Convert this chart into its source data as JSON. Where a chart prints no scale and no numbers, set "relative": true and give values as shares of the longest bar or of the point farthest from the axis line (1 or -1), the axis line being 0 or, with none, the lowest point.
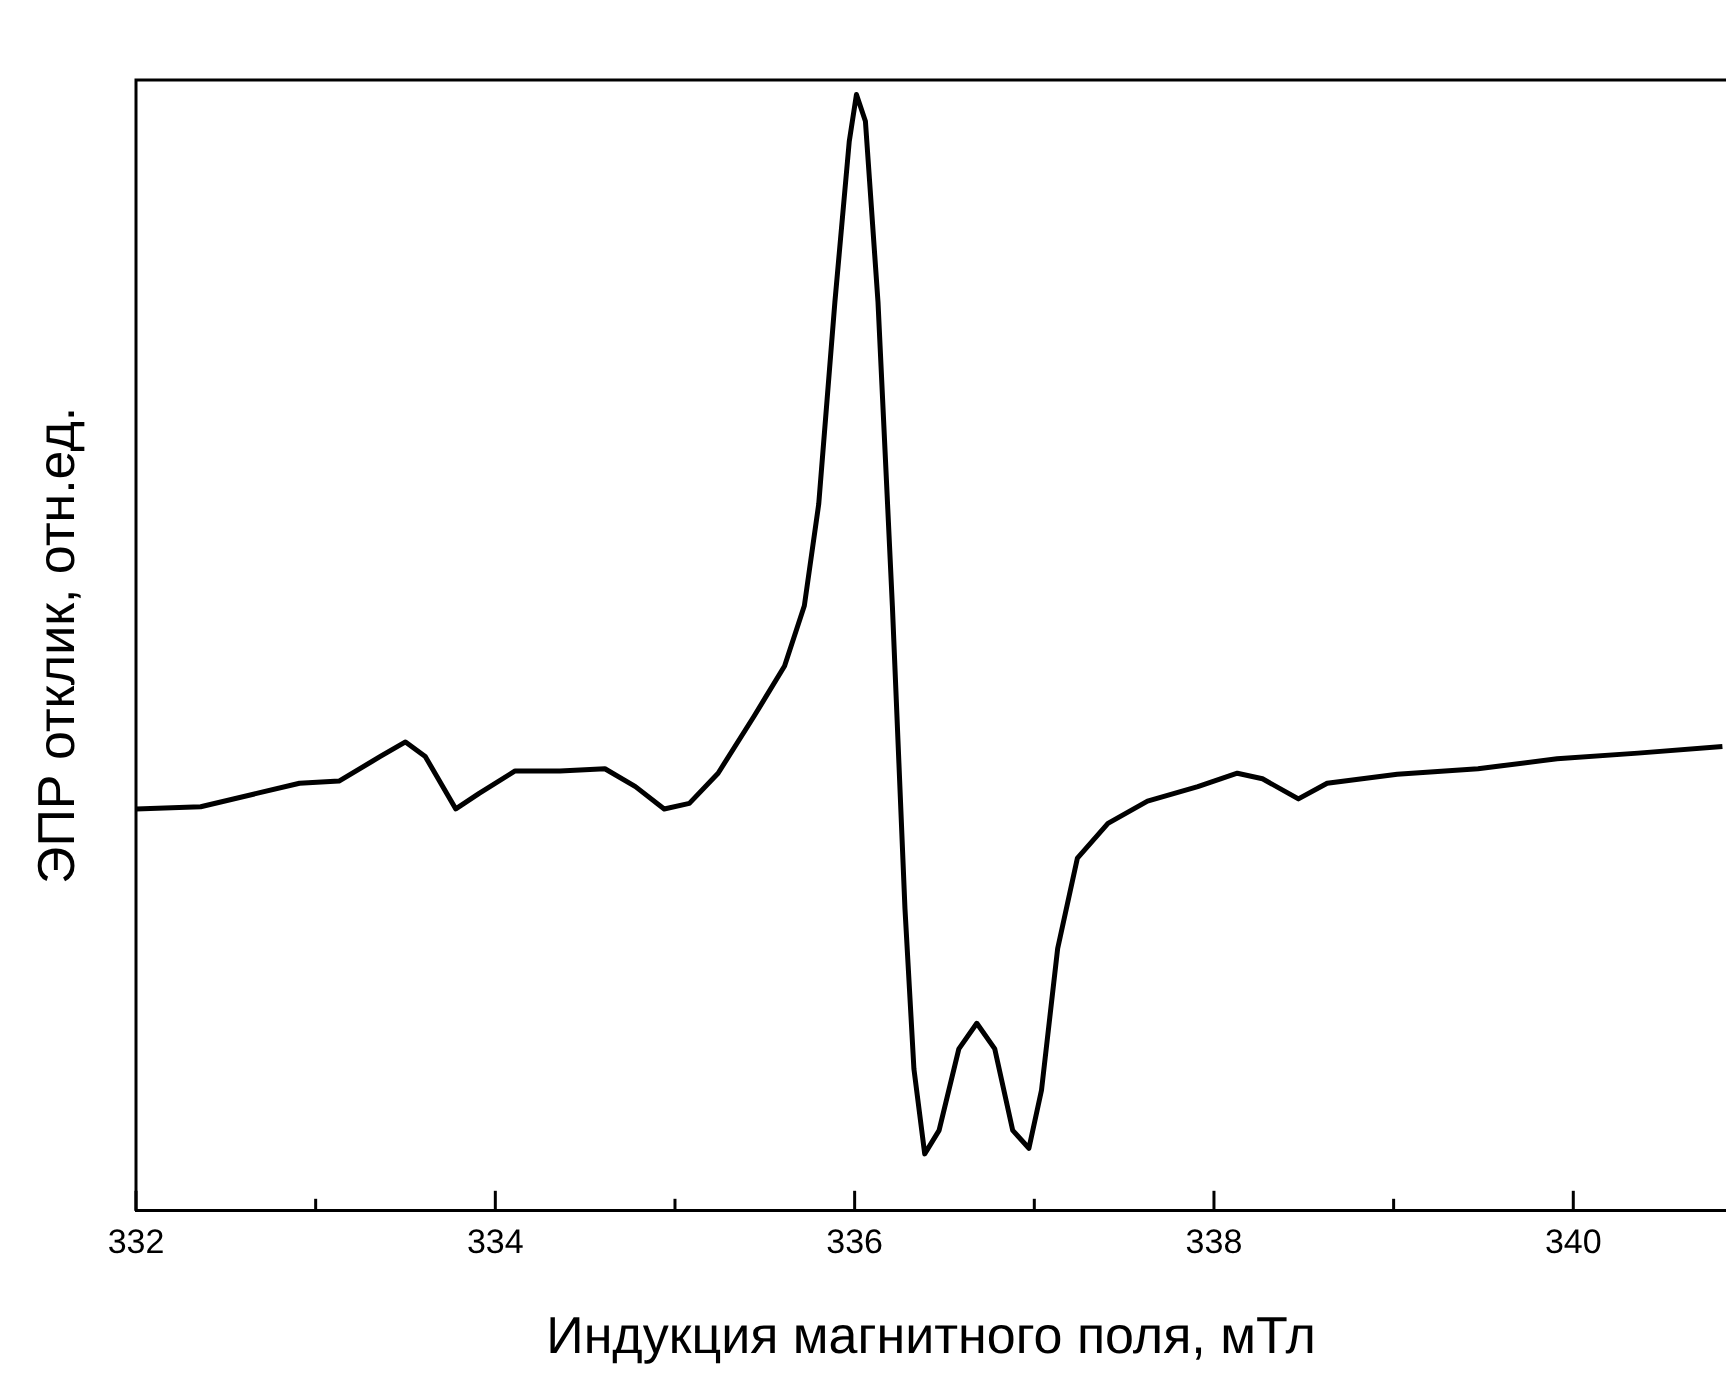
{
  "chart_data": {
    "type": "line",
    "xlabel": "Индукция магнитного поля, мТл",
    "ylabel": "ЭПР отклик, отн.ед.",
    "relative": true,
    "color": "#000000",
    "grid": false,
    "legend": false,
    "marker": "none",
    "line_style": "solid",
    "xlim": [
      332,
      340.85
    ],
    "xticks": [
      332,
      {
        "value": 333,
        "label": null
      },
      334,
      {
        "value": 335,
        "label": null
      },
      336,
      {
        "value": 337,
        "label": null
      },
      338,
      {
        "value": 339,
        "label": null
      },
      340
    ],
    "x": [
      332,
      332.36,
      332.91,
      333.13,
      333.36,
      333.5,
      333.61,
      333.78,
      333.91,
      334.11,
      334.36,
      334.61,
      334.78,
      334.94,
      335.08,
      335.24,
      335.44,
      335.61,
      335.72,
      335.8,
      335.89,
      335.97,
      336.01,
      336.06,
      336.13,
      336.21,
      336.28,
      336.33,
      336.39,
      336.47,
      336.58,
      336.68,
      336.78,
      336.88,
      336.97,
      337.04,
      337.13,
      337.24,
      337.41,
      337.63,
      337.91,
      338.13,
      338.27,
      338.47,
      338.63,
      339.02,
      339.47,
      339.91,
      340.36,
      340.83
    ],
    "values": [
      0.36,
      0.362,
      0.383,
      0.385,
      0.407,
      0.42,
      0.407,
      0.36,
      0.374,
      0.394,
      0.394,
      0.396,
      0.38,
      0.36,
      0.365,
      0.392,
      0.443,
      0.488,
      0.542,
      0.633,
      0.814,
      0.958,
      1,
      0.976,
      0.814,
      0.542,
      0.271,
      0.127,
      0.051,
      0.072,
      0.145,
      0.168,
      0.145,
      0.072,
      0.056,
      0.108,
      0.235,
      0.316,
      0.347,
      0.367,
      0.38,
      0.392,
      0.387,
      0.369,
      0.383,
      0.391,
      0.396,
      0.405,
      0.41,
      0.416
    ]
  }
}
